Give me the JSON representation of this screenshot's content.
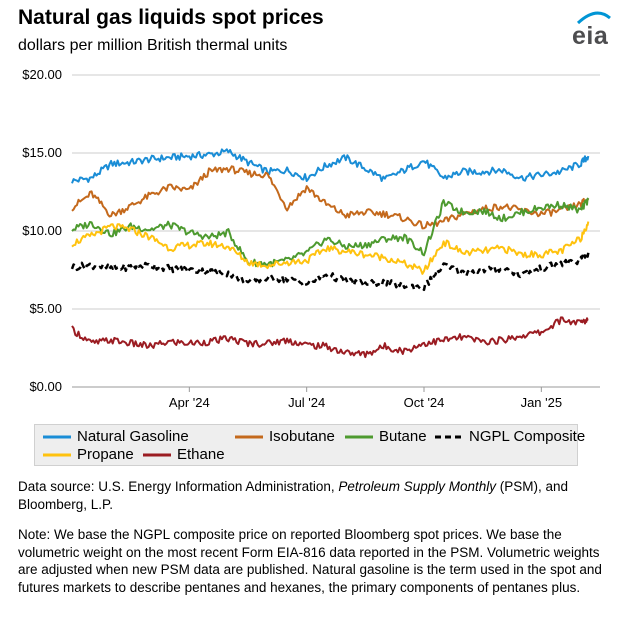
{
  "header": {
    "title": "Natural gas liquids spot prices",
    "subtitle": "dollars per million British thermal units",
    "logo_text": "eia"
  },
  "colors": {
    "natural_gasoline": "#1a8dd6",
    "isobutane": "#c4691c",
    "butane": "#4d9a2f",
    "ngpl_composite": "#000000",
    "propane": "#ffc20e",
    "ethane": "#9b1c22",
    "grid": "#cccccc",
    "logo_arc": "#0095d5"
  },
  "chart_data": {
    "type": "line",
    "title": "Natural gas liquids spot prices",
    "ylabel": "dollars per million British thermal units",
    "xlabel": "",
    "ylim": [
      0,
      20
    ],
    "xlim": [
      0,
      13.5
    ],
    "x_unit": "months since Jan 1, 2024",
    "y_ticks": [
      "$0.00",
      "$5.00",
      "$10.00",
      "$15.00",
      "$20.00"
    ],
    "y_tick_values": [
      0,
      5,
      10,
      15,
      20
    ],
    "x_ticks": [
      "Apr '24",
      "Jul '24",
      "Oct '24",
      "Jan '25"
    ],
    "x_tick_values": [
      3,
      6,
      9,
      12
    ],
    "grid": true,
    "series": [
      {
        "key": "natural_gasoline",
        "name": "Natural Gasoline",
        "dash": "solid",
        "x": [
          0,
          0.5,
          1,
          1.5,
          2,
          2.5,
          3,
          3.5,
          4,
          4.5,
          5,
          5.5,
          6,
          6.5,
          7,
          7.5,
          8,
          8.5,
          9,
          9.5,
          10,
          10.5,
          11,
          11.5,
          12,
          12.5,
          13,
          13.2
        ],
        "values": [
          13.2,
          13.4,
          14.3,
          14.4,
          14.6,
          14.7,
          14.8,
          14.9,
          15.1,
          14.4,
          13.8,
          13.9,
          13.4,
          14.2,
          14.7,
          14.0,
          13.3,
          13.9,
          14.5,
          13.4,
          13.8,
          13.8,
          13.9,
          13.4,
          13.6,
          13.8,
          14.3,
          14.8
        ]
      },
      {
        "key": "isobutane",
        "name": "Isobutane",
        "dash": "solid",
        "x": [
          0,
          0.5,
          1,
          1.5,
          2,
          2.5,
          3,
          3.5,
          4,
          4.5,
          5,
          5.5,
          6,
          6.5,
          7,
          7.5,
          8,
          8.5,
          9,
          9.5,
          10,
          10.5,
          11,
          11.5,
          12,
          12.5,
          13,
          13.2
        ],
        "values": [
          11.5,
          12.4,
          11.0,
          11.6,
          12.3,
          12.8,
          12.6,
          13.8,
          14.0,
          13.7,
          13.6,
          11.5,
          12.8,
          11.7,
          11.0,
          11.2,
          11.1,
          10.8,
          10.3,
          10.6,
          11.1,
          11.4,
          11.6,
          11.3,
          11.1,
          11.3,
          11.7,
          12.1
        ]
      },
      {
        "key": "butane",
        "name": "Butane",
        "dash": "solid",
        "x": [
          0,
          0.5,
          1,
          1.5,
          2,
          2.5,
          3,
          3.5,
          4,
          4.5,
          5,
          5.5,
          6,
          6.5,
          7,
          7.5,
          8,
          8.5,
          9,
          9.5,
          10,
          10.5,
          11,
          11.5,
          12,
          12.5,
          13,
          13.2
        ],
        "values": [
          10.1,
          10.5,
          9.8,
          10.3,
          10.1,
          10.4,
          9.9,
          9.6,
          9.9,
          8.0,
          7.9,
          8.1,
          8.6,
          9.5,
          9.0,
          9.1,
          9.5,
          9.6,
          8.6,
          11.8,
          11.2,
          11.3,
          10.8,
          11.2,
          11.5,
          11.7,
          11.3,
          12.0
        ]
      },
      {
        "key": "ngpl_composite",
        "name": "NGPL Composite",
        "dash": "dashed",
        "x": [
          0,
          0.5,
          1,
          1.5,
          2,
          2.5,
          3,
          3.5,
          4,
          4.5,
          5,
          5.5,
          6,
          6.5,
          7,
          7.5,
          8,
          8.5,
          9,
          9.5,
          10,
          10.5,
          11,
          11.5,
          12,
          12.5,
          13,
          13.2
        ],
        "values": [
          7.7,
          7.8,
          7.6,
          7.7,
          7.8,
          7.6,
          7.5,
          7.4,
          7.3,
          6.7,
          7.0,
          6.9,
          6.6,
          7.2,
          6.8,
          6.6,
          6.7,
          6.5,
          6.4,
          7.8,
          7.3,
          7.5,
          7.6,
          7.2,
          7.6,
          7.9,
          8.1,
          8.6
        ]
      },
      {
        "key": "propane",
        "name": "Propane",
        "dash": "solid",
        "x": [
          0,
          0.5,
          1,
          1.5,
          2,
          2.5,
          3,
          3.5,
          4,
          4.5,
          5,
          5.5,
          6,
          6.5,
          7,
          7.5,
          8,
          8.5,
          9,
          9.5,
          10,
          10.5,
          11,
          11.5,
          12,
          12.5,
          13,
          13.2
        ],
        "values": [
          9.2,
          9.7,
          10.3,
          10.1,
          9.6,
          8.9,
          9.1,
          9.2,
          9.0,
          8.0,
          7.8,
          8.0,
          8.1,
          8.9,
          8.7,
          8.5,
          8.3,
          7.9,
          7.4,
          9.3,
          8.6,
          8.7,
          8.9,
          8.5,
          8.5,
          8.7,
          9.5,
          10.6
        ]
      },
      {
        "key": "ethane",
        "name": "Ethane",
        "dash": "solid",
        "x": [
          0,
          0.5,
          1,
          1.5,
          2,
          2.5,
          3,
          3.5,
          4,
          4.5,
          5,
          5.5,
          6,
          6.5,
          7,
          7.5,
          8,
          8.5,
          9,
          9.5,
          10,
          10.5,
          11,
          11.5,
          12,
          12.5,
          13,
          13.2
        ],
        "values": [
          3.7,
          2.8,
          3.0,
          2.8,
          2.6,
          2.9,
          2.8,
          2.9,
          3.1,
          2.8,
          2.8,
          3.0,
          2.7,
          2.6,
          2.2,
          2.1,
          2.6,
          2.3,
          2.8,
          3.0,
          3.2,
          2.9,
          3.0,
          3.3,
          3.5,
          4.3,
          4.1,
          4.3
        ]
      }
    ]
  },
  "legend": {
    "items": [
      {
        "key": "natural_gasoline",
        "label": "Natural Gasoline"
      },
      {
        "key": "isobutane",
        "label": "Isobutane"
      },
      {
        "key": "butane",
        "label": "Butane"
      },
      {
        "key": "ngpl_composite",
        "label": "NGPL Composite"
      },
      {
        "key": "propane",
        "label": "Propane"
      },
      {
        "key": "ethane",
        "label": "Ethane"
      }
    ]
  },
  "footer": {
    "source_prefix": "Data source: U.S. Energy Information Administration, ",
    "source_italic": "Petroleum Supply Monthly",
    "source_suffix": " (PSM), and Bloomberg, L.P.",
    "note": "Note: We base the NGPL composite price on reported Bloomberg spot prices. We base the volumetric weight on the most recent Form EIA-816 data reported in the PSM. Volumetric weights are adjusted when new PSM data are published. Natural gasoline is the term used in the spot and futures markets to describe pentanes and hexanes, the primary components of pentanes plus."
  }
}
